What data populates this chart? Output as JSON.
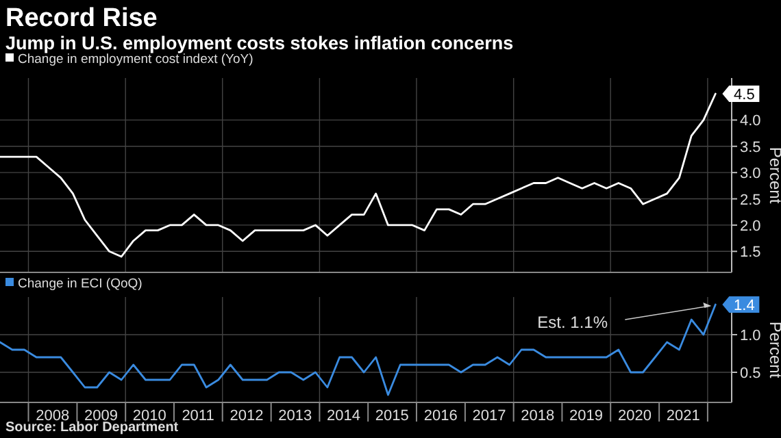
{
  "chart_data": [
    {
      "type": "line",
      "title": "Record Rise",
      "subtitle": "Jump in U.S. employment costs stokes inflation concerns",
      "ylabel": "Percent",
      "legend": "top left",
      "grid": true,
      "tick_labels": "y",
      "x": [
        "2007-06",
        "2007-09",
        "2007-12",
        "2008-03",
        "2008-06",
        "2008-09",
        "2008-12",
        "2009-03",
        "2009-06",
        "2009-09",
        "2009-12",
        "2010-03",
        "2010-06",
        "2010-09",
        "2010-12",
        "2011-03",
        "2011-06",
        "2011-09",
        "2011-12",
        "2012-03",
        "2012-06",
        "2012-09",
        "2012-12",
        "2013-03",
        "2013-06",
        "2013-09",
        "2013-12",
        "2014-03",
        "2014-06",
        "2014-09",
        "2014-12",
        "2015-03",
        "2015-06",
        "2015-09",
        "2015-12",
        "2016-03",
        "2016-06",
        "2016-09",
        "2016-12",
        "2017-03",
        "2017-06",
        "2017-09",
        "2017-12",
        "2018-03",
        "2018-06",
        "2018-09",
        "2018-12",
        "2019-03",
        "2019-06",
        "2019-09",
        "2019-12",
        "2020-03",
        "2020-06",
        "2020-09",
        "2020-12",
        "2021-03",
        "2021-06",
        "2021-09",
        "2021-12",
        "2022-03"
      ],
      "xlim": [
        "2007-06",
        "2022-07"
      ],
      "xticks": [
        {
          "value": "2008-01",
          "label": null
        },
        {
          "value": "2010-01",
          "label": null
        },
        {
          "value": "2012-01",
          "label": null
        },
        {
          "value": "2014-01",
          "label": null
        },
        {
          "value": "2016-01",
          "label": null
        },
        {
          "value": "2018-01",
          "label": null
        },
        {
          "value": "2020-01",
          "label": null
        },
        {
          "value": "2022-01",
          "label": null
        }
      ],
      "ylim": [
        1.1,
        4.8
      ],
      "yticks": [
        1.5,
        {
          "value": 2,
          "label": "2.0"
        },
        2.5,
        {
          "value": 3,
          "label": "3.0"
        },
        3.5,
        {
          "value": 4,
          "label": "4.0"
        }
      ],
      "series": [
        {
          "name": "Change in employment cost indext (YoY)",
          "color": "#ffffff",
          "values": [
            3.3,
            3.3,
            3.3,
            3.3,
            3.1,
            2.9,
            2.6,
            2.1,
            1.8,
            1.5,
            1.4,
            1.7,
            1.9,
            1.9,
            2.0,
            2.0,
            2.2,
            2.0,
            2.0,
            1.9,
            1.7,
            1.9,
            1.9,
            1.9,
            1.9,
            1.9,
            2.0,
            1.8,
            2.0,
            2.2,
            2.2,
            2.6,
            2.0,
            2.0,
            2.0,
            1.9,
            2.3,
            2.3,
            2.2,
            2.4,
            2.4,
            2.5,
            2.6,
            2.7,
            2.8,
            2.8,
            2.9,
            2.8,
            2.7,
            2.8,
            2.7,
            2.8,
            2.7,
            2.4,
            2.5,
            2.6,
            2.9,
            3.7,
            4.0,
            4.5
          ],
          "value_labels": [
            null,
            null,
            null,
            null,
            null,
            null,
            null,
            null,
            null,
            null,
            null,
            null,
            null,
            null,
            null,
            null,
            null,
            null,
            null,
            null,
            null,
            null,
            null,
            null,
            null,
            null,
            null,
            null,
            null,
            null,
            null,
            null,
            null,
            null,
            null,
            null,
            null,
            null,
            null,
            null,
            null,
            null,
            null,
            null,
            null,
            null,
            null,
            null,
            null,
            null,
            null,
            null,
            null,
            null,
            null,
            null,
            null,
            null,
            null,
            "4.5"
          ]
        }
      ]
    },
    {
      "type": "line",
      "ylabel": "Percent",
      "legend": "top left",
      "grid": true,
      "x": [
        "2007-06",
        "2007-09",
        "2007-12",
        "2008-03",
        "2008-06",
        "2008-09",
        "2008-12",
        "2009-03",
        "2009-06",
        "2009-09",
        "2009-12",
        "2010-03",
        "2010-06",
        "2010-09",
        "2010-12",
        "2011-03",
        "2011-06",
        "2011-09",
        "2011-12",
        "2012-03",
        "2012-06",
        "2012-09",
        "2012-12",
        "2013-03",
        "2013-06",
        "2013-09",
        "2013-12",
        "2014-03",
        "2014-06",
        "2014-09",
        "2014-12",
        "2015-03",
        "2015-06",
        "2015-09",
        "2015-12",
        "2016-03",
        "2016-06",
        "2016-09",
        "2016-12",
        "2017-03",
        "2017-06",
        "2017-09",
        "2017-12",
        "2018-03",
        "2018-06",
        "2018-09",
        "2018-12",
        "2019-03",
        "2019-06",
        "2019-09",
        "2019-12",
        "2020-03",
        "2020-06",
        "2020-09",
        "2020-12",
        "2021-03",
        "2021-06",
        "2021-09",
        "2021-12",
        "2022-03"
      ],
      "xlim": [
        "2007-06",
        "2022-07"
      ],
      "xticks": [
        {
          "value": "2008-01",
          "label": null
        },
        {
          "value": "2008-07",
          "label": "2008"
        },
        {
          "value": "2009-01",
          "label": null
        },
        {
          "value": "2009-07",
          "label": "2009"
        },
        {
          "value": "2010-01",
          "label": null
        },
        {
          "value": "2010-07",
          "label": "2010"
        },
        {
          "value": "2011-01",
          "label": null
        },
        {
          "value": "2011-07",
          "label": "2011"
        },
        {
          "value": "2012-01",
          "label": null
        },
        {
          "value": "2012-07",
          "label": "2012"
        },
        {
          "value": "2013-01",
          "label": null
        },
        {
          "value": "2013-07",
          "label": "2013"
        },
        {
          "value": "2014-01",
          "label": null
        },
        {
          "value": "2014-07",
          "label": "2014"
        },
        {
          "value": "2015-01",
          "label": null
        },
        {
          "value": "2015-07",
          "label": "2015"
        },
        {
          "value": "2016-01",
          "label": null
        },
        {
          "value": "2016-07",
          "label": "2016"
        },
        {
          "value": "2017-01",
          "label": null
        },
        {
          "value": "2017-07",
          "label": "2017"
        },
        {
          "value": "2018-01",
          "label": null
        },
        {
          "value": "2018-07",
          "label": "2018"
        },
        {
          "value": "2019-01",
          "label": null
        },
        {
          "value": "2019-07",
          "label": "2019"
        },
        {
          "value": "2020-01",
          "label": null
        },
        {
          "value": "2020-07",
          "label": "2020"
        },
        {
          "value": "2021-01",
          "label": null
        },
        {
          "value": "2021-07",
          "label": "2021"
        },
        {
          "value": "2022-01",
          "label": null
        }
      ],
      "ylim": [
        0.1,
        1.5
      ],
      "yticks": [
        0.5,
        {
          "value": 1,
          "label": "1.0"
        }
      ],
      "annotations": [
        {
          "text": "Est. 1.1%",
          "x": "2022-03",
          "y": 1.4
        },
        "Source: Labor Department"
      ],
      "series": [
        {
          "name": "Change in ECI (QoQ)",
          "color": "#3a8be0",
          "values": [
            0.9,
            0.8,
            0.8,
            0.7,
            0.7,
            0.7,
            0.5,
            0.3,
            0.3,
            0.5,
            0.4,
            0.6,
            0.4,
            0.4,
            0.4,
            0.6,
            0.6,
            0.3,
            0.4,
            0.6,
            0.4,
            0.4,
            0.4,
            0.5,
            0.5,
            0.4,
            0.5,
            0.3,
            0.7,
            0.7,
            0.5,
            0.7,
            0.2,
            0.6,
            0.6,
            0.6,
            0.6,
            0.6,
            0.5,
            0.6,
            0.6,
            0.7,
            0.6,
            0.8,
            0.8,
            0.7,
            0.7,
            0.7,
            0.7,
            0.7,
            0.7,
            0.8,
            0.5,
            0.5,
            0.7,
            0.9,
            0.8,
            1.2,
            1.0,
            1.4
          ],
          "value_labels": [
            null,
            null,
            null,
            null,
            null,
            null,
            null,
            null,
            null,
            null,
            null,
            null,
            null,
            null,
            null,
            null,
            null,
            null,
            null,
            null,
            null,
            null,
            null,
            null,
            null,
            null,
            null,
            null,
            null,
            null,
            null,
            null,
            null,
            null,
            null,
            null,
            null,
            null,
            null,
            null,
            null,
            null,
            null,
            null,
            null,
            null,
            null,
            null,
            null,
            null,
            null,
            null,
            null,
            null,
            null,
            null,
            null,
            null,
            null,
            "1.4"
          ]
        }
      ]
    }
  ]
}
